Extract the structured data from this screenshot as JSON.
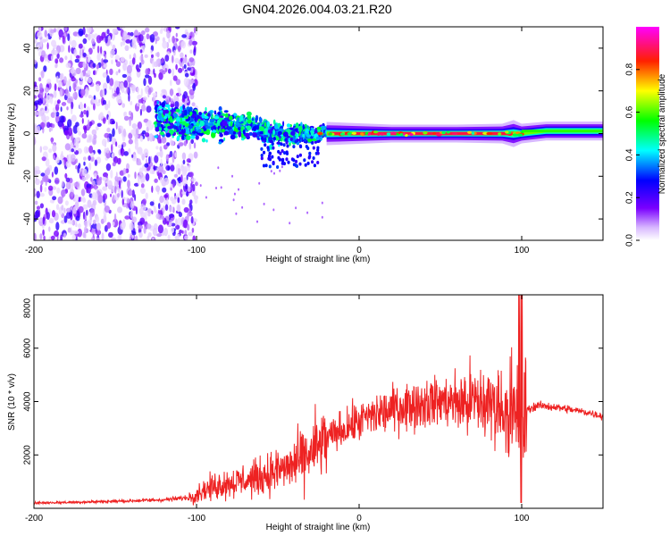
{
  "title": "GN04.2026.004.03.21.R20",
  "chart_data": [
    {
      "type": "heatmap",
      "xlabel": "Height of straight line (km)",
      "ylabel": "Frequency (Hz)",
      "xlim": [
        -200,
        150
      ],
      "ylim": [
        -50,
        50
      ],
      "xticks": [
        -200,
        -100,
        0,
        100
      ],
      "xtick_labels": [
        "-200",
        "-100",
        "0",
        "100"
      ],
      "yticks": [
        -40,
        -20,
        0,
        20,
        40
      ],
      "ytick_labels": [
        "-40",
        "-20",
        "0",
        "20",
        "40"
      ],
      "colorbar": {
        "label": "Normalized spectral amplitude",
        "range": [
          0,
          1
        ],
        "ticks": [
          0.0,
          0.2,
          0.4,
          0.6,
          0.8
        ],
        "tick_labels": [
          "0.0",
          "0.2",
          "0.4",
          "0.6",
          "0.8"
        ]
      },
      "description_points": [
        {
          "height": -200,
          "freq_spread": 50,
          "amplitude": 0.15
        },
        {
          "height": -120,
          "freq_spread": 12,
          "amplitude": 0.4
        },
        {
          "height": -80,
          "freq_spread": 8,
          "amplitude": 0.35
        },
        {
          "height": -40,
          "freq_spread": 6,
          "amplitude": 0.4
        },
        {
          "height": -15,
          "freq_spread": 2,
          "amplitude": 0.9
        },
        {
          "height": 50,
          "freq_spread": 1.5,
          "amplitude": 1.0
        },
        {
          "height": 95,
          "freq_spread": 3,
          "amplitude": 0.5
        },
        {
          "height": 150,
          "freq_spread": 3,
          "amplitude": 0.45
        }
      ]
    },
    {
      "type": "line",
      "xlabel": "Height of straight line (km)",
      "ylabel": "SNR (10 * v/v)",
      "xlim": [
        -200,
        150
      ],
      "ylim": [
        0,
        8000
      ],
      "xticks": [
        -200,
        -100,
        0,
        100
      ],
      "xtick_labels": [
        "-200",
        "-100",
        "0",
        "100"
      ],
      "yticks": [
        2000,
        4000,
        6000,
        8000
      ],
      "ytick_labels": [
        "2000",
        "4000",
        "6000",
        "8000"
      ],
      "color": "#ee2222",
      "series": [
        {
          "name": "SNR",
          "x": [
            -200,
            -180,
            -160,
            -140,
            -120,
            -105,
            -95,
            -85,
            -75,
            -65,
            -55,
            -45,
            -35,
            -25,
            -15,
            -5,
            5,
            15,
            25,
            35,
            45,
            55,
            65,
            75,
            85,
            92,
            97,
            100,
            103,
            110,
            120,
            130,
            140,
            150
          ],
          "values": [
            200,
            220,
            250,
            280,
            320,
            400,
            700,
            900,
            1000,
            1100,
            1300,
            1500,
            1800,
            2300,
            2800,
            3100,
            3400,
            3600,
            3800,
            3900,
            4000,
            4000,
            4000,
            3950,
            3900,
            3600,
            3200,
            3000,
            3700,
            3850,
            3800,
            3700,
            3600,
            3450
          ]
        }
      ]
    }
  ]
}
